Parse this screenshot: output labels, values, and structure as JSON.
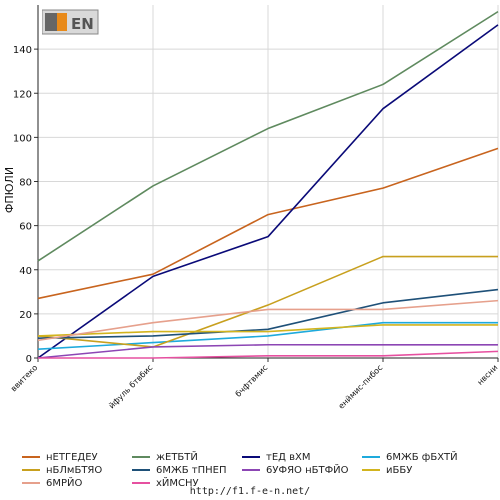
{
  "logo": {
    "text": "F1EN"
  },
  "footer": {
    "url": "http://f1.f-e-n.net/"
  },
  "chart_data": {
    "type": "line",
    "title": "",
    "xlabel": "",
    "ylabel": "ФПЮЛИ",
    "ylim": [
      0,
      160
    ],
    "yticks": [
      0,
      20,
      40,
      60,
      80,
      100,
      120,
      140
    ],
    "grid": true,
    "legend_position": "bottom",
    "categories": [
      "ввитеко",
      "йфуль бтвбис",
      "бчфтвмис",
      "енймис-пнбос",
      "нвсни"
    ],
    "series": [
      {
        "name": "нЕТГЕДЕУ",
        "color": "#c8641e",
        "values": [
          27,
          38,
          65,
          77,
          95
        ]
      },
      {
        "name": "жЕТБТЙ",
        "color": "#5f8a5f",
        "values": [
          44,
          78,
          104,
          124,
          157
        ]
      },
      {
        "name": "тЕД вХМ",
        "color": "#0a0a78",
        "values": [
          0,
          37,
          55,
          113,
          151
        ]
      },
      {
        "name": "6МЖБ фБХТЙ",
        "color": "#1eaadc",
        "values": [
          4,
          7,
          10,
          16,
          16
        ]
      },
      {
        "name": "нБЛмБТЯО",
        "color": "#c8a01e",
        "values": [
          10,
          5,
          24,
          46,
          46
        ]
      },
      {
        "name": "6МЖБ тПНЕП",
        "color": "#1e5078",
        "values": [
          9,
          10,
          13,
          25,
          31
        ]
      },
      {
        "name": "6УФЯО нБТФЙО",
        "color": "#8c46b4",
        "values": [
          0,
          5,
          6,
          6,
          6
        ]
      },
      {
        "name": "иББУ",
        "color": "#d2b41e",
        "values": [
          10,
          12,
          12,
          15,
          15
        ]
      },
      {
        "name": "6МРЙО",
        "color": "#e6a08c",
        "values": [
          8,
          16,
          22,
          22,
          26
        ]
      },
      {
        "name": "хЙМСНУ",
        "color": "#e650a0",
        "values": [
          0,
          0,
          1,
          1,
          3
        ]
      }
    ]
  }
}
